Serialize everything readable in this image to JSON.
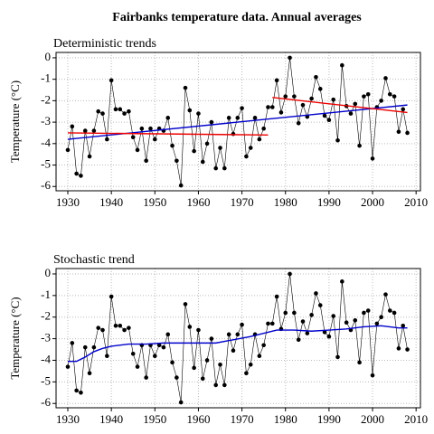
{
  "title": "Fairbanks temperature data. Annual averages",
  "chart_data": [
    {
      "type": "line",
      "title": "Deterministic trends",
      "ylabel": "Temperature (°C)",
      "x": [
        1930,
        1931,
        1932,
        1933,
        1934,
        1935,
        1936,
        1937,
        1938,
        1939,
        1940,
        1941,
        1942,
        1943,
        1944,
        1945,
        1946,
        1947,
        1948,
        1949,
        1950,
        1951,
        1952,
        1953,
        1954,
        1955,
        1956,
        1957,
        1958,
        1959,
        1960,
        1961,
        1962,
        1963,
        1964,
        1965,
        1966,
        1967,
        1968,
        1969,
        1970,
        1971,
        1972,
        1973,
        1974,
        1975,
        1976,
        1977,
        1978,
        1979,
        1980,
        1981,
        1982,
        1983,
        1984,
        1985,
        1986,
        1987,
        1988,
        1989,
        1990,
        1991,
        1992,
        1993,
        1994,
        1995,
        1996,
        1997,
        1998,
        1999,
        2000,
        2001,
        2002,
        2003,
        2004,
        2005,
        2006,
        2007,
        2008
      ],
      "values": [
        -4.3,
        -3.2,
        -5.4,
        -5.5,
        -3.4,
        -4.6,
        -3.4,
        -2.5,
        -2.6,
        -3.8,
        -1.05,
        -2.4,
        -2.4,
        -2.6,
        -2.5,
        -3.7,
        -4.3,
        -3.3,
        -4.8,
        -3.3,
        -3.8,
        -3.3,
        -3.4,
        -2.8,
        -4.1,
        -4.8,
        -5.95,
        -1.4,
        -2.45,
        -4.35,
        -2.6,
        -4.85,
        -4.0,
        -3.0,
        -5.15,
        -4.2,
        -5.15,
        -2.8,
        -3.55,
        -2.8,
        -2.35,
        -4.6,
        -4.2,
        -2.8,
        -3.8,
        -3.3,
        -2.3,
        -2.3,
        -1.05,
        -2.55,
        -1.8,
        0.0,
        -1.8,
        -3.05,
        -2.2,
        -2.75,
        -1.9,
        -0.9,
        -1.45,
        -2.7,
        -2.9,
        -1.95,
        -3.85,
        -0.35,
        -2.25,
        -2.6,
        -2.15,
        -4.1,
        -1.8,
        -1.7,
        -4.7,
        -2.3,
        -2.0,
        -0.95,
        -1.7,
        -1.8,
        -3.45,
        -2.4,
        -3.5
      ],
      "trends": [
        {
          "color": "#0000cc",
          "x": [
            1930,
            2008
          ],
          "values": [
            -3.8,
            -2.2
          ]
        },
        {
          "color": "#ee0000",
          "x": [
            1930,
            1976
          ],
          "values": [
            -3.5,
            -3.6
          ]
        },
        {
          "color": "#ee0000",
          "x": [
            1977,
            2008
          ],
          "values": [
            -1.85,
            -2.55
          ]
        }
      ],
      "xlim": [
        1927.3,
        2011
      ],
      "xticks": [
        1930,
        1940,
        1950,
        1960,
        1970,
        1980,
        1990,
        2000,
        2010
      ],
      "ylim": [
        -6.2,
        0.25
      ],
      "yticks": [
        0,
        -1,
        -2,
        -3,
        -4,
        -5,
        -6
      ],
      "grid": true
    },
    {
      "type": "line",
      "title": "Stochastic trend",
      "ylabel": "Temperature (°C)",
      "x": [
        1930,
        1931,
        1932,
        1933,
        1934,
        1935,
        1936,
        1937,
        1938,
        1939,
        1940,
        1941,
        1942,
        1943,
        1944,
        1945,
        1946,
        1947,
        1948,
        1949,
        1950,
        1951,
        1952,
        1953,
        1954,
        1955,
        1956,
        1957,
        1958,
        1959,
        1960,
        1961,
        1962,
        1963,
        1964,
        1965,
        1966,
        1967,
        1968,
        1969,
        1970,
        1971,
        1972,
        1973,
        1974,
        1975,
        1976,
        1977,
        1978,
        1979,
        1980,
        1981,
        1982,
        1983,
        1984,
        1985,
        1986,
        1987,
        1988,
        1989,
        1990,
        1991,
        1992,
        1993,
        1994,
        1995,
        1996,
        1997,
        1998,
        1999,
        2000,
        2001,
        2002,
        2003,
        2004,
        2005,
        2006,
        2007,
        2008
      ],
      "values": [
        -4.3,
        -3.2,
        -5.4,
        -5.5,
        -3.4,
        -4.6,
        -3.4,
        -2.5,
        -2.6,
        -3.8,
        -1.05,
        -2.4,
        -2.4,
        -2.6,
        -2.5,
        -3.7,
        -4.3,
        -3.3,
        -4.8,
        -3.3,
        -3.8,
        -3.3,
        -3.4,
        -2.8,
        -4.1,
        -4.8,
        -5.95,
        -1.4,
        -2.45,
        -4.35,
        -2.6,
        -4.85,
        -4.0,
        -3.0,
        -5.15,
        -4.2,
        -5.15,
        -2.8,
        -3.55,
        -2.8,
        -2.35,
        -4.6,
        -4.2,
        -2.8,
        -3.8,
        -3.3,
        -2.3,
        -2.3,
        -1.05,
        -2.55,
        -1.8,
        0.0,
        -1.8,
        -3.05,
        -2.2,
        -2.75,
        -1.9,
        -0.9,
        -1.45,
        -2.7,
        -2.9,
        -1.95,
        -3.85,
        -0.35,
        -2.25,
        -2.6,
        -2.15,
        -4.1,
        -1.8,
        -1.7,
        -4.7,
        -2.3,
        -2.0,
        -0.95,
        -1.7,
        -1.8,
        -3.45,
        -2.4,
        -3.5
      ],
      "trends": [
        {
          "color": "#0000cc",
          "x": [
            1930,
            1932,
            1934,
            1936,
            1938,
            1940,
            1944,
            1948,
            1952,
            1956,
            1960,
            1964,
            1968,
            1972,
            1976,
            1978,
            1982,
            1986,
            1990,
            1994,
            1998,
            2002,
            2006,
            2008
          ],
          "values": [
            -4.05,
            -4.05,
            -3.85,
            -3.6,
            -3.45,
            -3.35,
            -3.25,
            -3.25,
            -3.2,
            -3.2,
            -3.2,
            -3.2,
            -3.05,
            -2.9,
            -2.7,
            -2.6,
            -2.6,
            -2.65,
            -2.6,
            -2.55,
            -2.45,
            -2.4,
            -2.5,
            -2.5
          ]
        }
      ],
      "xlim": [
        1927.3,
        2011
      ],
      "xticks": [
        1930,
        1940,
        1950,
        1960,
        1970,
        1980,
        1990,
        2000,
        2010
      ],
      "ylim": [
        -6.2,
        0.25
      ],
      "yticks": [
        0,
        -1,
        -2,
        -3,
        -4,
        -5,
        -6
      ],
      "grid": true
    }
  ]
}
